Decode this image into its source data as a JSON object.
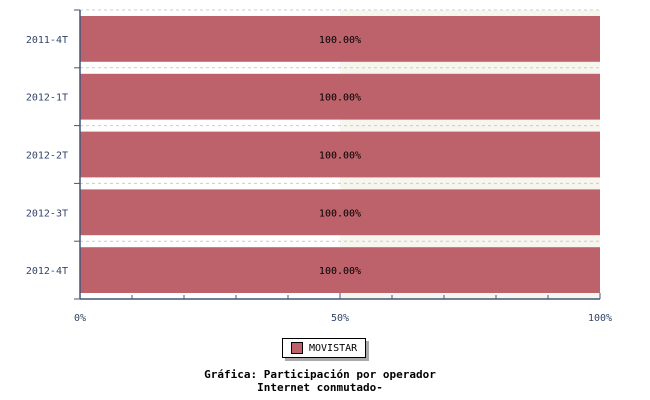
{
  "chart_data": {
    "type": "bar",
    "orientation": "horizontal",
    "stacked": true,
    "categories": [
      "2011-4T",
      "2012-1T",
      "2012-2T",
      "2012-3T",
      "2012-4T"
    ],
    "series": [
      {
        "name": "MOVISTAR",
        "values": [
          100,
          100,
          100,
          100,
          100
        ],
        "color": "#bd626a"
      }
    ],
    "data_labels": [
      "100.00%",
      "100.00%",
      "100.00%",
      "100.00%",
      "100.00%"
    ],
    "xlim": [
      0,
      100
    ],
    "xticks": [
      "0%",
      "50%",
      "100%"
    ],
    "grid": true,
    "legend": "bottom",
    "title": [
      "Gráfica: Participación por operador",
      "Internet conmutado-"
    ]
  }
}
